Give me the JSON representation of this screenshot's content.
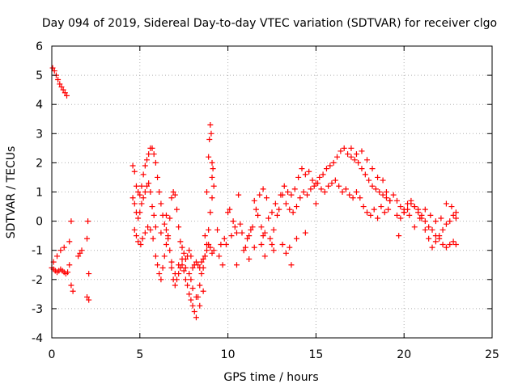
{
  "chart_data": {
    "type": "scatter",
    "title": "Day 094 of 2019, Sidereal Day-to-day VTEC variation (SDTVAR) for receiver clgo",
    "xlabel": "GPS time / hours",
    "ylabel": "SDTVAR / TECUs",
    "xlim": [
      0,
      25
    ],
    "ylim": [
      -4,
      6
    ],
    "xticks": [
      0,
      5,
      10,
      15,
      20,
      25
    ],
    "yticks": [
      -4,
      -3,
      -2,
      -1,
      0,
      1,
      2,
      3,
      4,
      5,
      6
    ],
    "grid": true,
    "marker": "+",
    "series": [
      {
        "name": "SDTVAR",
        "color": "#ff0000",
        "x": [
          0.05,
          0.15,
          0.25,
          0.35,
          0.45,
          0.55,
          0.65,
          0.75,
          0.85,
          0.0,
          0.1,
          0.2,
          0.3,
          0.4,
          0.5,
          0.6,
          0.7,
          0.8,
          0.9,
          1.0,
          0.1,
          0.3,
          0.5,
          0.7,
          1.0,
          1.1,
          1.1,
          1.2,
          1.5,
          1.6,
          1.7,
          2.0,
          2.05,
          2.1,
          2.0,
          2.1,
          4.6,
          4.7,
          4.8,
          4.9,
          5.0,
          5.1,
          5.2,
          5.3,
          5.4,
          5.5,
          5.6,
          5.7,
          5.8,
          5.9,
          4.6,
          4.7,
          4.8,
          4.9,
          5.0,
          5.1,
          5.2,
          5.3,
          5.4,
          5.5,
          5.6,
          5.7,
          5.8,
          5.9,
          4.7,
          4.8,
          4.9,
          5.05,
          5.15,
          5.3,
          5.45,
          5.6,
          5.75,
          5.9,
          6.0,
          6.1,
          6.2,
          6.3,
          6.4,
          6.5,
          6.6,
          6.7,
          6.8,
          6.9,
          7.0,
          7.1,
          7.2,
          7.3,
          7.4,
          7.5,
          7.6,
          7.7,
          7.8,
          7.9,
          6.0,
          6.1,
          6.2,
          6.3,
          6.4,
          6.5,
          6.6,
          6.7,
          6.8,
          6.9,
          7.0,
          7.1,
          7.2,
          7.3,
          7.4,
          7.5,
          7.6,
          7.7,
          7.8,
          7.9,
          6.2,
          6.5,
          6.8,
          7.0,
          7.2,
          7.4,
          7.6,
          7.8,
          8.0,
          8.1,
          8.2,
          8.3,
          8.4,
          8.5,
          8.6,
          8.7,
          8.8,
          8.9,
          9.0,
          9.1,
          9.2,
          8.0,
          8.1,
          8.2,
          8.3,
          8.4,
          8.5,
          8.6,
          8.7,
          8.8,
          8.9,
          9.0,
          9.1,
          9.2,
          7.9,
          8.0,
          8.2,
          8.4,
          8.6,
          8.7,
          8.8,
          8.9,
          8.95,
          9.0,
          9.05,
          9.1,
          9.1,
          9.15,
          9.4,
          9.6,
          9.8,
          10.0,
          10.2,
          10.4,
          10.6,
          10.8,
          11.0,
          11.2,
          11.4,
          11.6,
          11.8,
          12.0,
          12.2,
          12.4,
          12.6,
          12.8,
          13.0,
          13.2,
          13.4,
          13.6,
          13.8,
          14.0,
          14.2,
          14.4,
          14.6,
          14.8,
          15.0,
          15.2,
          15.4,
          15.6,
          15.8,
          16.0,
          16.2,
          16.4,
          16.6,
          16.8,
          17.0,
          17.2,
          17.4,
          17.6,
          17.8,
          18.0,
          18.2,
          18.4,
          18.6,
          18.8,
          19.0,
          19.2,
          9.5,
          9.7,
          9.9,
          10.1,
          10.3,
          10.5,
          10.7,
          10.9,
          11.1,
          11.3,
          11.5,
          11.7,
          11.9,
          12.1,
          12.3,
          12.5,
          12.7,
          12.9,
          13.1,
          13.3,
          13.5,
          13.7,
          13.9,
          14.1,
          14.3,
          14.5,
          14.7,
          14.9,
          15.1,
          15.3,
          15.5,
          15.7,
          15.9,
          16.1,
          16.3,
          16.5,
          16.7,
          16.9,
          17.1,
          17.3,
          17.5,
          17.7,
          17.9,
          18.1,
          18.3,
          18.5,
          18.7,
          18.9,
          19.1,
          10.5,
          11.2,
          11.5,
          11.9,
          12.0,
          12.1,
          12.5,
          12.6,
          13.1,
          13.3,
          13.5,
          13.6,
          13.9,
          14.4,
          15.0,
          17.0,
          17.3,
          17.6,
          17.9,
          18.2,
          18.5,
          18.8,
          19.0,
          19.2,
          19.4,
          19.6,
          19.8,
          20.0,
          20.2,
          20.4,
          20.6,
          20.8,
          21.0,
          21.2,
          21.4,
          21.6,
          21.8,
          22.0,
          22.2,
          22.4,
          22.6,
          22.8,
          22.95,
          19.6,
          19.8,
          20.0,
          20.2,
          20.4,
          20.6,
          20.8,
          21.0,
          21.2,
          21.4,
          21.6,
          21.8,
          22.0,
          22.2,
          22.4,
          22.6,
          22.8,
          22.95,
          19.7,
          20.0,
          20.3,
          20.6,
          20.9,
          21.2,
          21.5,
          21.8,
          22.1,
          22.4,
          22.7,
          22.95
        ],
        "y": [
          5.25,
          5.15,
          5.0,
          4.85,
          4.7,
          4.6,
          4.5,
          4.4,
          4.3,
          -1.6,
          -1.65,
          -1.7,
          -1.75,
          -1.7,
          -1.65,
          -1.7,
          -1.75,
          -1.8,
          -1.75,
          -1.5,
          -1.4,
          -1.2,
          -1.0,
          -0.9,
          -0.7,
          0.0,
          -2.2,
          -2.4,
          -1.2,
          -1.1,
          -1.0,
          -0.6,
          0.0,
          -1.8,
          -2.6,
          -2.7,
          1.9,
          1.7,
          1.2,
          1.0,
          0.9,
          1.2,
          1.6,
          1.9,
          2.1,
          2.3,
          2.5,
          2.5,
          2.3,
          2.0,
          0.8,
          0.6,
          0.3,
          0.1,
          0.3,
          0.6,
          0.8,
          1.0,
          1.2,
          1.3,
          1.0,
          0.5,
          0.2,
          -0.2,
          -0.3,
          -0.5,
          -0.7,
          -0.8,
          -0.6,
          -0.4,
          -0.2,
          -0.3,
          -0.6,
          -1.2,
          1.5,
          1.0,
          0.6,
          0.2,
          -0.1,
          -0.3,
          -0.6,
          0.1,
          0.8,
          1.0,
          0.9,
          0.4,
          -0.2,
          -0.7,
          -0.9,
          -1.1,
          -1.3,
          -1.2,
          -1.0,
          -1.2,
          -1.5,
          -1.8,
          -2.0,
          -1.6,
          -1.2,
          -0.8,
          -0.5,
          -1.0,
          -1.6,
          -2.0,
          -2.2,
          -2.0,
          -1.8,
          -1.6,
          -1.5,
          -1.7,
          -2.0,
          -2.2,
          -2.5,
          -2.7,
          -0.4,
          0.2,
          -1.4,
          -1.8,
          -1.5,
          -1.3,
          -1.6,
          -1.8,
          -2.9,
          -3.1,
          -3.3,
          -2.6,
          -2.2,
          -1.8,
          -1.6,
          -1.2,
          -0.8,
          -0.3,
          0.3,
          0.8,
          1.2,
          -1.6,
          -1.5,
          -1.4,
          -1.5,
          -1.6,
          -1.4,
          -1.3,
          -1.2,
          -1.0,
          -0.8,
          -0.9,
          -1.1,
          -1.0,
          -2.0,
          -2.3,
          -2.6,
          -2.9,
          -2.4,
          -0.5,
          1.0,
          2.2,
          2.8,
          3.3,
          3.0,
          2.0,
          1.5,
          1.8,
          -0.3,
          -0.8,
          -0.6,
          0.3,
          -0.5,
          -0.2,
          0.9,
          -0.4,
          -0.9,
          -0.5,
          -0.2,
          0.4,
          0.9,
          1.1,
          0.8,
          -0.6,
          -0.3,
          0.2,
          0.9,
          1.2,
          1.0,
          0.9,
          1.1,
          1.5,
          1.8,
          1.6,
          1.7,
          1.4,
          1.3,
          1.5,
          1.6,
          1.8,
          1.9,
          2.0,
          2.2,
          2.4,
          2.5,
          2.3,
          2.2,
          2.1,
          2.0,
          1.8,
          1.6,
          1.4,
          1.2,
          1.1,
          1.0,
          0.9,
          0.8,
          0.7,
          -1.2,
          -1.5,
          -0.8,
          0.4,
          0.0,
          -0.4,
          -0.1,
          -1.0,
          -0.6,
          -0.3,
          0.7,
          0.2,
          -0.8,
          -0.4,
          0.1,
          0.3,
          0.6,
          0.4,
          0.9,
          0.6,
          0.4,
          0.3,
          0.5,
          0.8,
          1.0,
          0.9,
          1.1,
          1.2,
          1.3,
          1.1,
          1.0,
          1.2,
          1.3,
          1.4,
          1.2,
          1.0,
          1.1,
          0.9,
          0.8,
          1.0,
          0.8,
          0.5,
          0.3,
          0.2,
          0.4,
          0.1,
          0.5,
          0.3,
          0.4,
          -1.5,
          -1.3,
          -0.9,
          -0.2,
          -0.5,
          -1.2,
          -0.8,
          -1.0,
          -0.8,
          -1.1,
          -0.9,
          -1.5,
          -0.6,
          -0.4,
          0.6,
          2.5,
          2.3,
          2.4,
          2.1,
          1.8,
          1.5,
          1.4,
          1.0,
          0.7,
          0.9,
          0.7,
          0.5,
          0.3,
          0.4,
          0.6,
          0.5,
          0.3,
          0.2,
          0.0,
          -0.2,
          -0.3,
          -0.5,
          -0.6,
          -0.8,
          -0.9,
          -0.8,
          -0.7,
          -0.8,
          0.2,
          0.1,
          0.4,
          0.6,
          0.7,
          0.5,
          0.4,
          0.1,
          -0.3,
          -0.6,
          -0.9,
          -0.7,
          -0.5,
          -0.3,
          -0.1,
          0.0,
          0.2,
          0.1,
          -0.5,
          0.3,
          0.2,
          -0.2,
          0.1,
          0.4,
          0.2,
          0.0,
          0.1,
          0.6,
          0.5,
          0.3
        ]
      }
    ]
  }
}
